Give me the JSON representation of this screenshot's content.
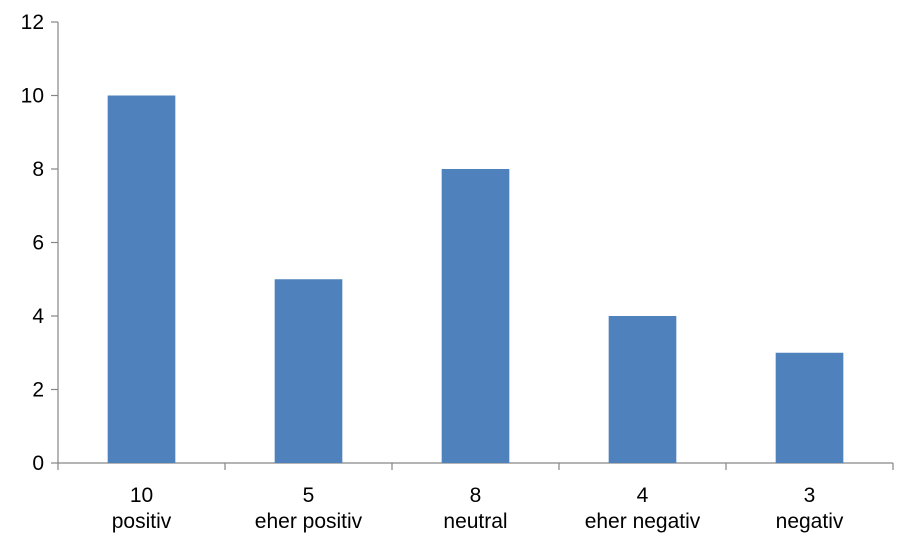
{
  "chart_data": {
    "type": "bar",
    "categories": [
      [
        "10",
        "positiv"
      ],
      [
        "5",
        "eher positiv"
      ],
      [
        "8",
        "neutral"
      ],
      [
        "4",
        "eher negativ"
      ],
      [
        "3",
        "negativ"
      ]
    ],
    "values": [
      10,
      5,
      8,
      4,
      3
    ],
    "ylim": [
      0,
      12
    ],
    "yticks": [
      0,
      2,
      4,
      6,
      8,
      10,
      12
    ],
    "title": "",
    "xlabel": "",
    "ylabel": "",
    "grid": false,
    "legend": "none",
    "colors": {
      "bar": "#4F81BD",
      "axis": "#868686"
    }
  }
}
